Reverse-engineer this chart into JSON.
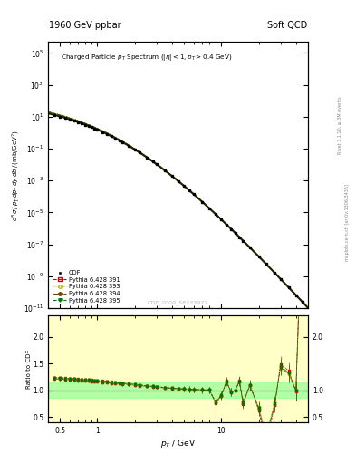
{
  "title_left": "1960 GeV ppbar",
  "title_right": "Soft QCD",
  "plot_title": "Charged Particle $p_T$ Spectrum $(|\\eta| < 1, p_T > 0.4$ GeV$)$",
  "xlabel": "$p_T$ / GeV",
  "ylabel_main": "$d^3\\sigma\\,/\\,p_T\\,dp_T\\,dy\\,db\\,/\\,(\\mathrm{mb/GeV}^2)$",
  "ylabel_ratio": "Ratio to CDF",
  "watermark": "CDF_2009_S8233977",
  "right_label1": "Rivet 3.1.10, ≥ 3M events",
  "right_label2": "mcplots.cern.ch [arXiv:1306.3436]",
  "xlim": [
    0.4,
    50
  ],
  "ylim_main": [
    1e-11,
    500000.0
  ],
  "ylim_ratio": [
    0.4,
    2.4
  ],
  "background_color": "#ffffff",
  "ratio_bg_yellow": "#ffff99",
  "ratio_bg_green": "#99ff99",
  "cdf_color": "#000000",
  "py391_color": "#cc0000",
  "py393_color": "#bbbb00",
  "py394_color": "#774400",
  "py395_color": "#007700",
  "ratio_line_color": "#000000",
  "right_labels_color": "#888888"
}
